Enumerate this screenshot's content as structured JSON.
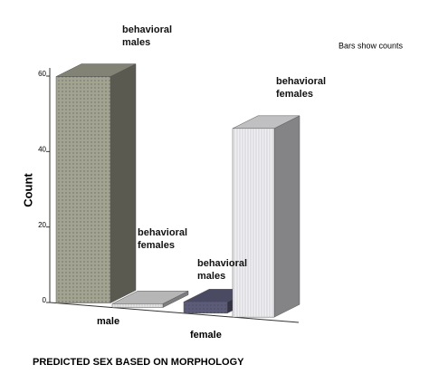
{
  "chart_data": {
    "type": "bar3d",
    "annotation": "Bars show counts",
    "x_label": "PREDICTED SEX BASED ON MORPHOLOGY",
    "y_label": "Count",
    "categories": [
      "male",
      "female"
    ],
    "series": [
      {
        "name": "behavioral males",
        "colors": [
          "#a3a392",
          "#5c5c7a"
        ],
        "values": [
          60,
          3
        ]
      },
      {
        "name": "behavioral females",
        "colors": [
          "#e4e4e4",
          "#f0f0f4"
        ],
        "values": [
          1,
          50
        ]
      }
    ],
    "ylim": [
      0,
      60
    ],
    "yticks": [
      0,
      20,
      40,
      60
    ]
  }
}
